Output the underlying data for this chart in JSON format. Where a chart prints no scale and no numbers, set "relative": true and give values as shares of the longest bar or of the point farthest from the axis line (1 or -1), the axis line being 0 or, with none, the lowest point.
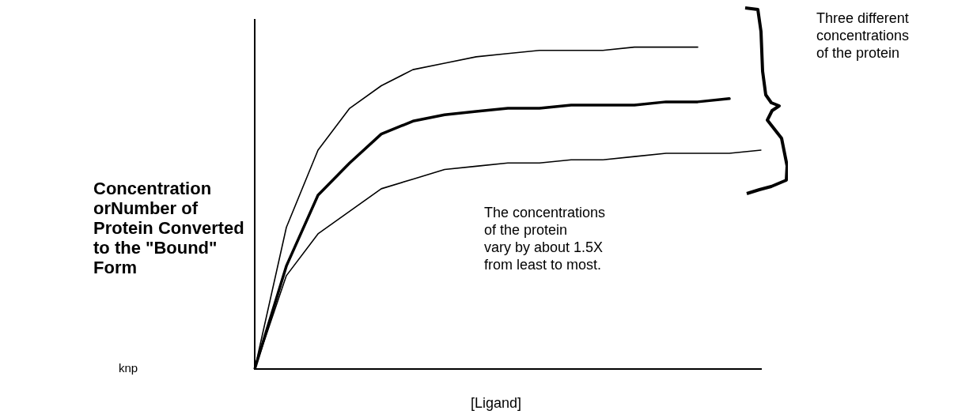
{
  "chart_data": {
    "type": "line",
    "relative": true,
    "xlabel": "[Ligand]",
    "ylabel": "Concentration\norNumber  of\nProtein Converted\nto the \"Bound\"\nForm",
    "annotations": [
      "The concentrations\nof the protein\nvary by about  1.5X\nfrom least to most.",
      "Three different\nconcentrations\nof  the protein",
      "knp"
    ],
    "categories": [
      null,
      null,
      null,
      null,
      null,
      null,
      null,
      null,
      null,
      null,
      null,
      null,
      null,
      null,
      null,
      null,
      null
    ],
    "series": [
      {
        "color": "#000000",
        "values": [
          0,
          0.44,
          0.68,
          0.81,
          0.88,
          0.93,
          0.95,
          0.97,
          0.98,
          0.99,
          0.99,
          0.99,
          1.0,
          1.0,
          1.0,
          null,
          null
        ]
      },
      {
        "color": "#000000",
        "values": [
          0,
          0.32,
          0.54,
          0.64,
          0.73,
          0.77,
          0.79,
          0.8,
          0.81,
          0.81,
          0.82,
          0.82,
          0.82,
          0.83,
          0.83,
          0.84,
          null
        ]
      },
      {
        "color": "#000000",
        "values": [
          0,
          0.29,
          0.42,
          0.49,
          0.56,
          0.59,
          0.62,
          0.63,
          0.64,
          0.64,
          0.65,
          0.65,
          0.66,
          0.67,
          0.67,
          0.67,
          0.68
        ]
      }
    ],
    "grid": false,
    "legend": false,
    "marker": "none",
    "line_style": "solid"
  }
}
